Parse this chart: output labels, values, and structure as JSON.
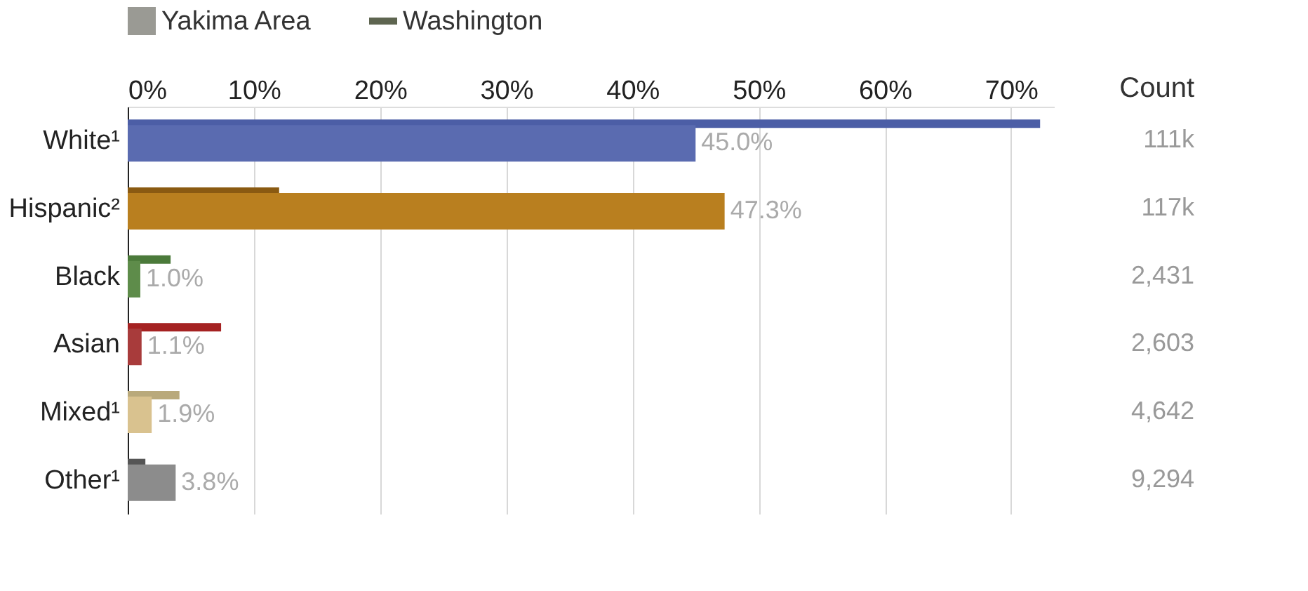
{
  "chart_data": {
    "type": "bar",
    "orientation": "horizontal",
    "categories": [
      "White¹",
      "Hispanic²",
      "Black",
      "Asian",
      "Mixed¹",
      "Other¹"
    ],
    "series": [
      {
        "name": "Washington",
        "color": "#5e6550",
        "type": "bar",
        "colors": [
          "#4c5ea6",
          "#8a5a12",
          "#4b7a3a",
          "#a52222",
          "#b9a97b",
          "#555555"
        ],
        "values": [
          72.3,
          12.0,
          3.4,
          7.4,
          4.1,
          1.4
        ]
      },
      {
        "name": "Yakima Area",
        "color": "#9a9a94",
        "colors": [
          "#5a6bb0",
          "#b97f1f",
          "#5e8c4a",
          "#a83b3b",
          "#d9c28f",
          "#8c8c8c"
        ],
        "values": [
          45.0,
          47.3,
          1.0,
          1.1,
          1.9,
          3.8
        ],
        "value_labels": [
          "45.0%",
          "47.3%",
          "1.0%",
          "1.1%",
          "1.9%",
          "3.8%"
        ]
      }
    ],
    "xlim": [
      0,
      73.4
    ],
    "xticks": [
      {
        "value": 0,
        "label": "0%"
      },
      {
        "value": 10,
        "label": "10%"
      },
      {
        "value": 20,
        "label": "20%"
      },
      {
        "value": 30,
        "label": "30%"
      },
      {
        "value": 40,
        "label": "40%"
      },
      {
        "value": 50,
        "label": "50%"
      },
      {
        "value": 60,
        "label": "60%"
      },
      {
        "value": 70,
        "label": "70%"
      }
    ],
    "grid": "x",
    "legend": "top left",
    "annotations": [
      "Count",
      "111k",
      "117k",
      "2,431",
      "2,603",
      "4,642",
      "9,294"
    ]
  }
}
